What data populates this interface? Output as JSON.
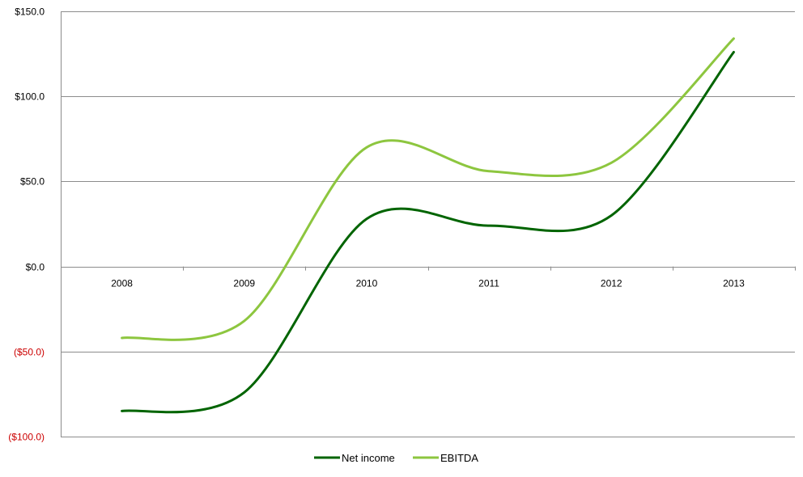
{
  "chart_data": {
    "type": "line",
    "categories": [
      "2008",
      "2009",
      "2010",
      "2011",
      "2012",
      "2013"
    ],
    "series": [
      {
        "name": "Net income",
        "values": [
          -85,
          -74,
          28,
          24,
          30,
          126
        ],
        "color": "#006400"
      },
      {
        "name": "EBITDA",
        "values": [
          -42,
          -32,
          70,
          56,
          61,
          134
        ],
        "color": "#8dc63f"
      }
    ],
    "y_ticks": [
      150,
      100,
      50,
      0,
      -50,
      -100
    ],
    "y_tick_labels": [
      "$150.0",
      "$100.0",
      "$50.0",
      "$0.0",
      "($50.0)",
      "($100.0)"
    ],
    "ylim": [
      -100,
      150
    ],
    "negative_label_color": "#cc0000",
    "grid": "horizontal",
    "legend_position": "bottom",
    "title": "",
    "xlabel": "",
    "ylabel": ""
  }
}
